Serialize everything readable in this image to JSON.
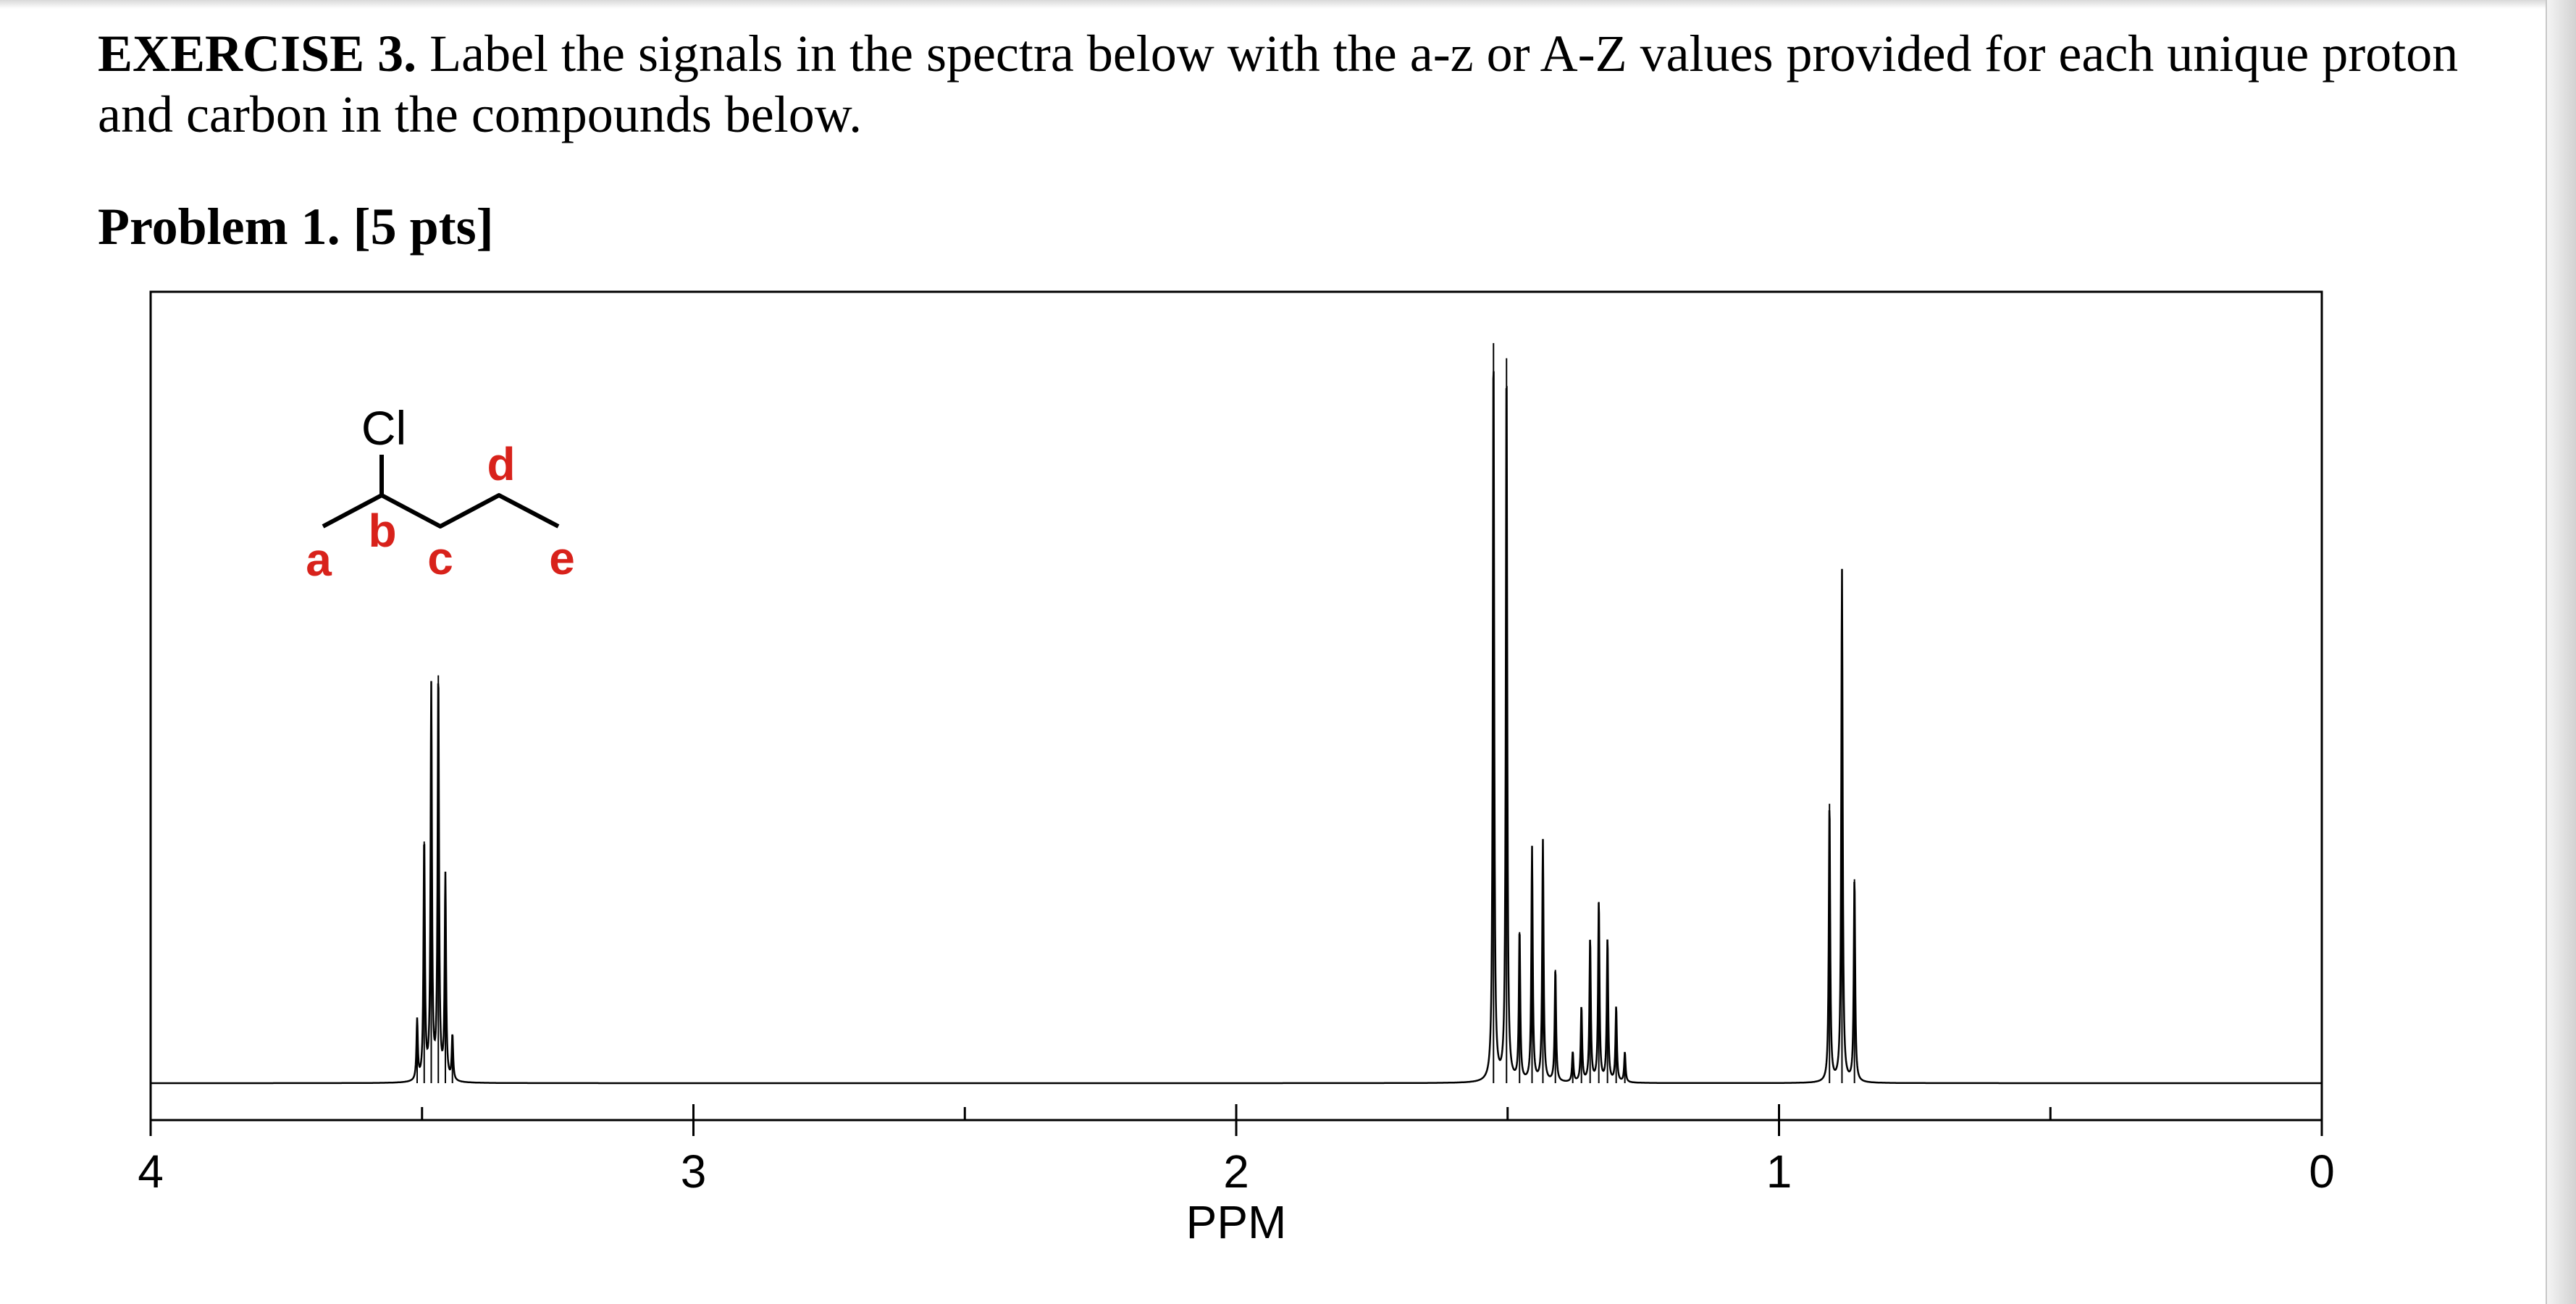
{
  "exercise": {
    "title": "EXERCISE 3.",
    "instruction": "Label the signals in the spectra below with the a-z or A-Z values provided for each unique proton and carbon in the compounds below."
  },
  "problem": {
    "label": "Problem 1. [5 pts]"
  },
  "molecule": {
    "substituent": "Cl",
    "labels": [
      "a",
      "b",
      "c",
      "d",
      "e"
    ],
    "label_color": "#d8221b"
  },
  "chart_data": {
    "type": "line",
    "title": "",
    "xlabel": "PPM",
    "ylabel": "",
    "xlim": [
      4,
      0
    ],
    "x_reversed": true,
    "grid": false,
    "tick_labels": [
      "4",
      "3",
      "2",
      "1",
      "0"
    ],
    "peaks": [
      {
        "ppm": 3.509,
        "intensity": 0.08
      },
      {
        "ppm": 3.496,
        "intensity": 0.32
      },
      {
        "ppm": 3.483,
        "intensity": 0.52
      },
      {
        "ppm": 3.47,
        "intensity": 0.54
      },
      {
        "ppm": 3.457,
        "intensity": 0.27
      },
      {
        "ppm": 3.444,
        "intensity": 0.06
      },
      {
        "ppm": 1.526,
        "intensity": 0.98
      },
      {
        "ppm": 1.502,
        "intensity": 0.96
      },
      {
        "ppm": 1.478,
        "intensity": 0.2
      },
      {
        "ppm": 1.455,
        "intensity": 0.31
      },
      {
        "ppm": 1.435,
        "intensity": 0.32
      },
      {
        "ppm": 1.412,
        "intensity": 0.15
      },
      {
        "ppm": 1.38,
        "intensity": 0.04
      },
      {
        "ppm": 1.364,
        "intensity": 0.1
      },
      {
        "ppm": 1.348,
        "intensity": 0.19
      },
      {
        "ppm": 1.332,
        "intensity": 0.24
      },
      {
        "ppm": 1.316,
        "intensity": 0.19
      },
      {
        "ppm": 1.3,
        "intensity": 0.1
      },
      {
        "ppm": 1.284,
        "intensity": 0.04
      },
      {
        "ppm": 0.907,
        "intensity": 0.37
      },
      {
        "ppm": 0.884,
        "intensity": 0.68
      },
      {
        "ppm": 0.861,
        "intensity": 0.27
      }
    ]
  }
}
